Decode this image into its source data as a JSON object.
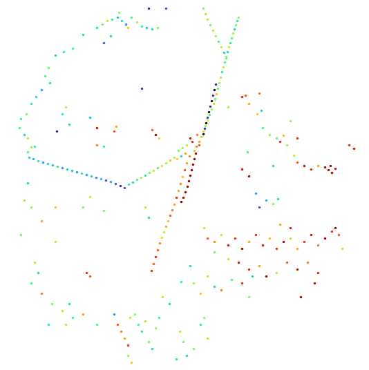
{
  "chart_data": {
    "type": "scatter",
    "xlim": [
      0,
      534
    ],
    "ylim": [
      536,
      0
    ],
    "tick_labels": false,
    "color_range": [
      0,
      1
    ],
    "points": [
      [
        345,
        25,
        0.5
      ],
      [
        343,
        30,
        0.35
      ],
      [
        341,
        36,
        0.45
      ],
      [
        339,
        42,
        0.3
      ],
      [
        337,
        48,
        0.55
      ],
      [
        335,
        55,
        0.4
      ],
      [
        333,
        62,
        0.35
      ],
      [
        331,
        68,
        0.6
      ],
      [
        329,
        75,
        0.3
      ],
      [
        327,
        82,
        0.45
      ],
      [
        325,
        90,
        0.4
      ],
      [
        323,
        97,
        0.55
      ],
      [
        321,
        104,
        0.35
      ],
      [
        319,
        112,
        0.6
      ],
      [
        317,
        120,
        0.5
      ],
      [
        315,
        128,
        0.4
      ],
      [
        313,
        136,
        0.65
      ],
      [
        311,
        143,
        0.45
      ],
      [
        309,
        150,
        0.6
      ],
      [
        306,
        158,
        0.5
      ],
      [
        303,
        166,
        0.4
      ],
      [
        300,
        174,
        0.55
      ],
      [
        297,
        182,
        0.5
      ],
      [
        294,
        190,
        0.65
      ],
      [
        291,
        198,
        0.6
      ],
      [
        288,
        205,
        0.7
      ],
      [
        284,
        212,
        0.75
      ],
      [
        281,
        218,
        0.65
      ],
      [
        294,
        12,
        0.5
      ],
      [
        297,
        20,
        0.6
      ],
      [
        300,
        28,
        0.55
      ],
      [
        304,
        36,
        0.45
      ],
      [
        308,
        44,
        0.6
      ],
      [
        312,
        52,
        0.5
      ],
      [
        316,
        60,
        0.4
      ],
      [
        320,
        68,
        0.55
      ],
      [
        324,
        76,
        0.3
      ],
      [
        327,
        84,
        0.45
      ],
      [
        312,
        122,
        0.05
      ],
      [
        310,
        130,
        0.0
      ],
      [
        308,
        138,
        0.05
      ],
      [
        306,
        146,
        0.0
      ],
      [
        304,
        154,
        0.05
      ],
      [
        302,
        162,
        0.0
      ],
      [
        300,
        170,
        0.05
      ],
      [
        298,
        178,
        0.0
      ],
      [
        296,
        186,
        0.05
      ],
      [
        294,
        194,
        0.0
      ],
      [
        283,
        222,
        0.95
      ],
      [
        281,
        230,
        1.0
      ],
      [
        279,
        238,
        0.95
      ],
      [
        277,
        246,
        1.0
      ],
      [
        275,
        254,
        0.95
      ],
      [
        273,
        262,
        1.0
      ],
      [
        271,
        270,
        0.95
      ],
      [
        268,
        278,
        1.0
      ],
      [
        265,
        286,
        0.95
      ],
      [
        262,
        292,
        1.0
      ],
      [
        274,
        226,
        0.75
      ],
      [
        270,
        236,
        0.7
      ],
      [
        267,
        246,
        0.8
      ],
      [
        264,
        256,
        0.65
      ],
      [
        261,
        266,
        0.75
      ],
      [
        258,
        276,
        0.7
      ],
      [
        255,
        286,
        0.85
      ],
      [
        252,
        296,
        0.7
      ],
      [
        249,
        304,
        0.75
      ],
      [
        246,
        312,
        0.8
      ],
      [
        243,
        320,
        0.65
      ],
      [
        240,
        328,
        0.7
      ],
      [
        237,
        336,
        0.55
      ],
      [
        234,
        344,
        0.6
      ],
      [
        231,
        352,
        0.75
      ],
      [
        228,
        362,
        0.8
      ],
      [
        225,
        372,
        0.85
      ],
      [
        222,
        382,
        0.8
      ],
      [
        219,
        392,
        0.85
      ],
      [
        285,
        195,
        0.75
      ],
      [
        278,
        205,
        0.85
      ],
      [
        270,
        210,
        0.6
      ],
      [
        264,
        214,
        0.5
      ],
      [
        258,
        218,
        0.45
      ],
      [
        275,
        200,
        0.9
      ],
      [
        268,
        222,
        0.7
      ],
      [
        262,
        226,
        0.3
      ],
      [
        256,
        230,
        0.6
      ],
      [
        288,
        210,
        0.8
      ],
      [
        42,
        228,
        0.3
      ],
      [
        48,
        230,
        0.25
      ],
      [
        55,
        233,
        0.35
      ],
      [
        62,
        235,
        0.2
      ],
      [
        69,
        237,
        0.3
      ],
      [
        76,
        239,
        0.25
      ],
      [
        83,
        241,
        0.35
      ],
      [
        90,
        243,
        0.2
      ],
      [
        97,
        245,
        0.3
      ],
      [
        104,
        247,
        0.25
      ],
      [
        111,
        249,
        0.2
      ],
      [
        118,
        251,
        0.35
      ],
      [
        125,
        253,
        0.2
      ],
      [
        132,
        255,
        0.3
      ],
      [
        139,
        257,
        0.15
      ],
      [
        146,
        259,
        0.25
      ],
      [
        153,
        261,
        0.1
      ],
      [
        160,
        263,
        0.2
      ],
      [
        167,
        266,
        0.1
      ],
      [
        174,
        269,
        0.05
      ],
      [
        180,
        272,
        0.1
      ],
      [
        40,
        220,
        0.4
      ],
      [
        45,
        213,
        0.5
      ],
      [
        50,
        212,
        0.35
      ],
      [
        186,
        267,
        0.35
      ],
      [
        192,
        264,
        0.3
      ],
      [
        198,
        260,
        0.4
      ],
      [
        204,
        257,
        0.5
      ],
      [
        210,
        254,
        0.35
      ],
      [
        216,
        250,
        0.45
      ],
      [
        222,
        247,
        0.55
      ],
      [
        228,
        243,
        0.4
      ],
      [
        234,
        240,
        0.6
      ],
      [
        240,
        236,
        0.5
      ],
      [
        246,
        232,
        0.65
      ],
      [
        252,
        228,
        0.55
      ],
      [
        140,
        40,
        0.3
      ],
      [
        148,
        35,
        0.45
      ],
      [
        155,
        30,
        0.55
      ],
      [
        162,
        28,
        0.35
      ],
      [
        170,
        25,
        0.25
      ],
      [
        176,
        30,
        0.3
      ],
      [
        182,
        35,
        0.15
      ],
      [
        190,
        25,
        0.4
      ],
      [
        198,
        32,
        0.55
      ],
      [
        205,
        38,
        0.35
      ],
      [
        212,
        40,
        0.25
      ],
      [
        220,
        42,
        0.3
      ],
      [
        228,
        40,
        0.45
      ],
      [
        172,
        18,
        0.5
      ],
      [
        185,
        40,
        0.65
      ],
      [
        160,
        52,
        0.3
      ],
      [
        215,
        12,
        0.05
      ],
      [
        240,
        12,
        0.1
      ],
      [
        150,
        62,
        0.1
      ],
      [
        120,
        50,
        0.3
      ],
      [
        105,
        70,
        0.4
      ],
      [
        92,
        75,
        0.35
      ],
      [
        80,
        80,
        0.3
      ],
      [
        70,
        98,
        0.45
      ],
      [
        65,
        110,
        0.4
      ],
      [
        72,
        120,
        0.3
      ],
      [
        60,
        130,
        0.2
      ],
      [
        52,
        140,
        0.3
      ],
      [
        45,
        150,
        0.35
      ],
      [
        38,
        165,
        0.45
      ],
      [
        30,
        172,
        0.35
      ],
      [
        28,
        185,
        0.4
      ],
      [
        35,
        195,
        0.3
      ],
      [
        40,
        200,
        0.55
      ],
      [
        95,
        155,
        0.55
      ],
      [
        90,
        165,
        0.35
      ],
      [
        100,
        180,
        0.3
      ],
      [
        82,
        190,
        0.05
      ],
      [
        130,
        170,
        0.25
      ],
      [
        140,
        185,
        0.9
      ],
      [
        165,
        190,
        0.8
      ],
      [
        168,
        183,
        0.7
      ],
      [
        205,
        128,
        0.05
      ],
      [
        220,
        188,
        0.8
      ],
      [
        225,
        195,
        0.95
      ],
      [
        230,
        200,
        0.6
      ],
      [
        140,
        210,
        0.75
      ],
      [
        150,
        212,
        0.35
      ],
      [
        350,
        140,
        0.85
      ],
      [
        360,
        150,
        0.7
      ],
      [
        355,
        138,
        0.8
      ],
      [
        375,
        135,
        0.75
      ],
      [
        378,
        160,
        0.3
      ],
      [
        372,
        165,
        0.6
      ],
      [
        380,
        185,
        0.4
      ],
      [
        390,
        195,
        0.5
      ],
      [
        400,
        200,
        0.45
      ],
      [
        410,
        196,
        0.65
      ],
      [
        405,
        205,
        0.85
      ],
      [
        415,
        210,
        0.5
      ],
      [
        425,
        225,
        0.55
      ],
      [
        430,
        235,
        0.8
      ],
      [
        440,
        240,
        0.9
      ],
      [
        450,
        245,
        0.85
      ],
      [
        460,
        240,
        0.7
      ],
      [
        470,
        242,
        1.0
      ],
      [
        475,
        246,
        0.95
      ],
      [
        480,
        250,
        1.0
      ],
      [
        478,
        240,
        0.95
      ],
      [
        485,
        244,
        0.9
      ],
      [
        505,
        210,
        0.85
      ],
      [
        512,
        215,
        0.9
      ],
      [
        395,
        240,
        0.3
      ],
      [
        420,
        175,
        0.5
      ],
      [
        430,
        200,
        0.85
      ],
      [
        358,
        220,
        0.4
      ],
      [
        370,
        280,
        0.2
      ],
      [
        385,
        290,
        0.25
      ],
      [
        395,
        295,
        0.5
      ],
      [
        402,
        288,
        0.3
      ],
      [
        375,
        300,
        0.1
      ],
      [
        350,
        245,
        0.9
      ],
      [
        360,
        255,
        0.95
      ],
      [
        330,
        155,
        0.5
      ],
      [
        300,
        345,
        0.8
      ],
      [
        310,
        350,
        0.75
      ],
      [
        320,
        340,
        0.6
      ],
      [
        330,
        355,
        0.9
      ],
      [
        340,
        345,
        0.85
      ],
      [
        350,
        360,
        0.95
      ],
      [
        360,
        350,
        0.7
      ],
      [
        370,
        340,
        0.85
      ],
      [
        380,
        355,
        0.9
      ],
      [
        390,
        345,
        0.65
      ],
      [
        400,
        360,
        0.85
      ],
      [
        410,
        350,
        0.95
      ],
      [
        420,
        345,
        0.6
      ],
      [
        430,
        360,
        0.7
      ],
      [
        440,
        350,
        0.85
      ],
      [
        450,
        340,
        0.9
      ],
      [
        460,
        355,
        0.75
      ],
      [
        470,
        345,
        0.95
      ],
      [
        480,
        335,
        0.85
      ],
      [
        490,
        340,
        0.8
      ],
      [
        495,
        360,
        0.5
      ],
      [
        310,
        365,
        0.45
      ],
      [
        330,
        375,
        0.6
      ],
      [
        345,
        380,
        0.9
      ],
      [
        360,
        390,
        0.85
      ],
      [
        375,
        385,
        0.7
      ],
      [
        385,
        400,
        0.95
      ],
      [
        400,
        395,
        0.6
      ],
      [
        415,
        380,
        0.8
      ],
      [
        430,
        390,
        0.9
      ],
      [
        445,
        380,
        0.75
      ],
      [
        460,
        395,
        0.85
      ],
      [
        455,
        410,
        0.9
      ],
      [
        435,
        430,
        0.95
      ],
      [
        300,
        400,
        0.6
      ],
      [
        310,
        415,
        0.3
      ],
      [
        320,
        420,
        0.75
      ],
      [
        335,
        405,
        0.4
      ],
      [
        350,
        410,
        0.85
      ],
      [
        365,
        400,
        0.3
      ],
      [
        280,
        410,
        0.5
      ],
      [
        290,
        425,
        0.65
      ],
      [
        275,
        385,
        0.3
      ],
      [
        262,
        408,
        0.35
      ],
      [
        295,
        330,
        0.55
      ],
      [
        405,
        325,
        0.7
      ],
      [
        420,
        330,
        0.9
      ],
      [
        485,
        330,
        0.95
      ],
      [
        360,
        430,
        0.45
      ],
      [
        170,
        470,
        0.8
      ],
      [
        175,
        480,
        0.75
      ],
      [
        180,
        490,
        0.7
      ],
      [
        185,
        500,
        0.85
      ],
      [
        188,
        460,
        0.6
      ],
      [
        195,
        455,
        0.5
      ],
      [
        200,
        470,
        0.4
      ],
      [
        205,
        480,
        0.35
      ],
      [
        210,
        465,
        0.6
      ],
      [
        215,
        495,
        0.45
      ],
      [
        220,
        505,
        0.3
      ],
      [
        225,
        475,
        0.5
      ],
      [
        230,
        460,
        0.35
      ],
      [
        185,
        515,
        0.5
      ],
      [
        190,
        525,
        0.65
      ],
      [
        260,
        480,
        0.55
      ],
      [
        265,
        495,
        0.45
      ],
      [
        255,
        520,
        0.35
      ],
      [
        270,
        515,
        0.3
      ],
      [
        280,
        505,
        0.45
      ],
      [
        290,
        470,
        0.35
      ],
      [
        295,
        460,
        0.5
      ],
      [
        300,
        490,
        0.6
      ],
      [
        235,
        430,
        0.55
      ],
      [
        245,
        440,
        0.3
      ],
      [
        165,
        455,
        0.2
      ],
      [
        120,
        455,
        0.7
      ],
      [
        140,
        470,
        0.4
      ],
      [
        40,
        265,
        0.3
      ],
      [
        35,
        290,
        0.55
      ],
      [
        45,
        300,
        0.5
      ],
      [
        60,
        320,
        0.7
      ],
      [
        80,
        350,
        0.55
      ],
      [
        30,
        340,
        0.45
      ],
      [
        50,
        380,
        0.6
      ],
      [
        55,
        395,
        0.3
      ],
      [
        45,
        410,
        0.4
      ],
      [
        60,
        425,
        0.75
      ],
      [
        75,
        440,
        0.45
      ],
      [
        90,
        450,
        0.55
      ],
      [
        100,
        440,
        0.3
      ],
      [
        105,
        460,
        0.35
      ],
      [
        95,
        470,
        0.6
      ],
      [
        70,
        470,
        0.35
      ],
      [
        125,
        395,
        0.85
      ],
      [
        130,
        400,
        0.8
      ],
      [
        80,
        300,
        0.65
      ],
      [
        120,
        300,
        0.5
      ],
      [
        150,
        305,
        0.45
      ],
      [
        210,
        300,
        0.55
      ],
      [
        215,
        315,
        0.3
      ],
      [
        130,
        285,
        0.55
      ]
    ]
  }
}
